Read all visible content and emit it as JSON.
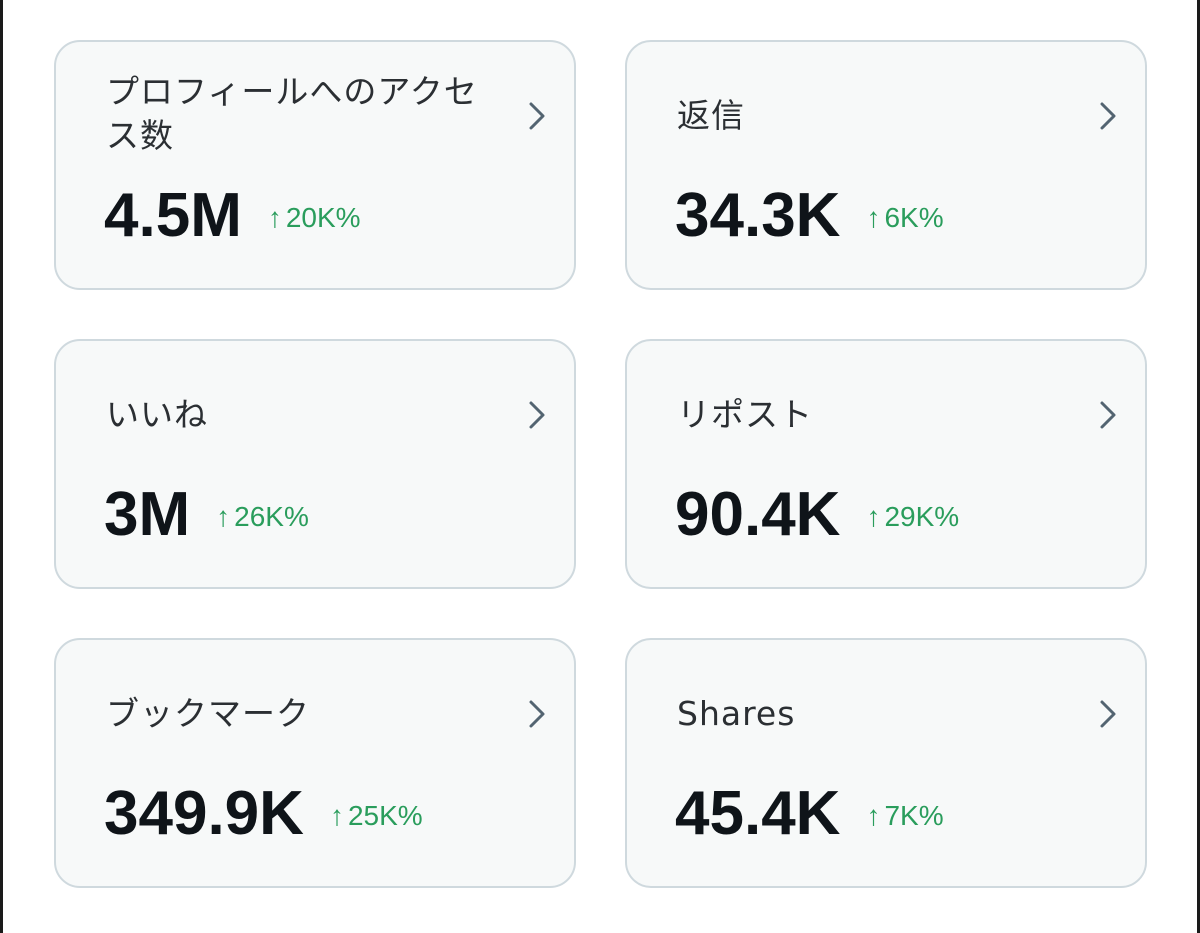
{
  "cards": [
    {
      "label": "プロフィールへのアクセス数",
      "value": "4.5M",
      "delta": "20K%",
      "delta_arrow": "↑"
    },
    {
      "label": "返信",
      "value": "34.3K",
      "delta": "6K%",
      "delta_arrow": "↑"
    },
    {
      "label": "いいね",
      "value": "3M",
      "delta": "26K%",
      "delta_arrow": "↑"
    },
    {
      "label": "リポスト",
      "value": "90.4K",
      "delta": "29K%",
      "delta_arrow": "↑"
    },
    {
      "label": "ブックマーク",
      "value": "349.9K",
      "delta": "25K%",
      "delta_arrow": "↑"
    },
    {
      "label": "Shares",
      "value": "45.4K",
      "delta": "7K%",
      "delta_arrow": "↑"
    }
  ],
  "icons": {
    "chevron": "chevron-right-icon"
  },
  "colors": {
    "positive_delta": "#2a9d5c",
    "card_border": "#cfd9de",
    "card_bg": "#f7f9f9"
  }
}
